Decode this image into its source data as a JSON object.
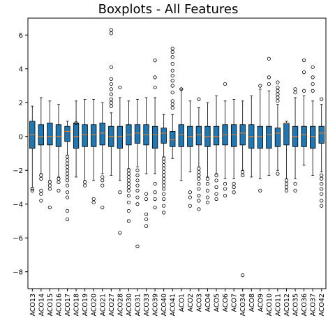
{
  "chart_data": {
    "type": "boxplot",
    "title": "Boxplots - All Features",
    "xlabel": "",
    "ylabel": "",
    "ylim": [
      -9,
      7
    ],
    "yticks": [
      -8,
      -6,
      -4,
      -2,
      0,
      2,
      4,
      6
    ],
    "grid": false,
    "colors": {
      "box": "#1f77b4",
      "median": "#ff7f0e",
      "frame": "#000000",
      "outlier": "#000000"
    },
    "categories": [
      "ACO13",
      "ACO14",
      "ACO15",
      "ACO16",
      "ACO17",
      "ACO18",
      "ACO19",
      "ACO20",
      "ACO21",
      "ACO27",
      "ACO28",
      "ACO30",
      "ACO31",
      "ACO33",
      "ACO39",
      "ACO40",
      "ACO41",
      "ACO1",
      "ACO2",
      "ACO3",
      "ACO4",
      "ACO5",
      "ACO6",
      "ACO7",
      "ACO34",
      "ACO8",
      "ACO9",
      "ACO10",
      "ACO11",
      "ACO12",
      "ACO35",
      "ACO36",
      "ACO37",
      "ACO42"
    ],
    "boxes": [
      {
        "q1": -0.7,
        "median": 0.1,
        "q3": 0.9,
        "whisker_low": -3.0,
        "whisker_high": 1.8,
        "outliers": [
          -3.1,
          -3.2
        ]
      },
      {
        "q1": -0.5,
        "median": 0.0,
        "q3": 0.7,
        "whisker_low": -2.2,
        "whisker_high": 2.3,
        "outliers": [
          -2.3,
          -2.5,
          -3.2,
          -3.4,
          -3.8
        ]
      },
      {
        "q1": -0.5,
        "median": 0.0,
        "q3": 0.8,
        "whisker_low": -2.6,
        "whisker_high": 2.1,
        "outliers": [
          -2.7,
          -2.9,
          -3.1,
          -4.2
        ]
      },
      {
        "q1": -0.6,
        "median": 0.0,
        "q3": 0.7,
        "whisker_low": -2.4,
        "whisker_high": 1.9,
        "outliers": [
          -2.5,
          -2.7,
          -3.2
        ]
      },
      {
        "q1": -0.3,
        "median": 0.3,
        "q3": 0.6,
        "whisker_low": -1.1,
        "whisker_high": 0.9,
        "outliers": [
          -1.2,
          -1.4,
          -1.6,
          -1.8,
          -2.0,
          -2.2,
          -2.4,
          -2.6,
          -2.9,
          -3.3,
          -3.6,
          -4.4,
          -4.9
        ]
      },
      {
        "q1": -0.7,
        "median": 0.0,
        "q3": 0.8,
        "whisker_low": -2.4,
        "whisker_high": 2.1,
        "outliers": [
          0.8
        ]
      },
      {
        "q1": -0.6,
        "median": 0.1,
        "q3": 0.7,
        "whisker_low": -2.6,
        "whisker_high": 2.2,
        "outliers": [
          -2.7,
          -2.9
        ]
      },
      {
        "q1": -0.6,
        "median": 0.1,
        "q3": 0.7,
        "whisker_low": -2.6,
        "whisker_high": 2.2,
        "outliers": [
          -3.7,
          -3.9
        ]
      },
      {
        "q1": -0.5,
        "median": 0.2,
        "q3": 0.8,
        "whisker_low": -2.2,
        "whisker_high": 2.0,
        "outliers": [
          -2.4,
          -2.6,
          -2.9,
          -4.2
        ]
      },
      {
        "q1": -0.6,
        "median": 0.0,
        "q3": 0.6,
        "whisker_low": -2.3,
        "whisker_high": 1.4,
        "outliers": [
          1.8,
          2.0,
          2.2,
          2.5,
          2.8,
          3.1,
          3.4,
          4.1,
          6.1,
          6.3
        ]
      },
      {
        "q1": -0.7,
        "median": 0.0,
        "q3": 0.6,
        "whisker_low": -2.6,
        "whisker_high": 2.3,
        "outliers": [
          2.9,
          -3.3,
          -5.7
        ]
      },
      {
        "q1": -0.5,
        "median": 0.1,
        "q3": 0.7,
        "whisker_low": -1.9,
        "whisker_high": 2.1,
        "outliers": [
          -2.0,
          -2.2,
          -2.4,
          -2.6,
          -2.8,
          -3.0,
          -3.2,
          -3.5,
          -3.9,
          -4.4,
          -5.0
        ]
      },
      {
        "q1": -0.4,
        "median": 0.2,
        "q3": 0.7,
        "whisker_low": -1.8,
        "whisker_high": 2.2,
        "outliers": [
          -2.0,
          -2.3,
          -2.6,
          -2.9,
          -3.2,
          -3.6,
          -4.0,
          -6.5
        ]
      },
      {
        "q1": -0.5,
        "median": 0.1,
        "q3": 0.7,
        "whisker_low": -2.2,
        "whisker_high": 2.3,
        "outliers": [
          -3.4,
          -3.7,
          -4.6,
          -4.9,
          -5.3
        ]
      },
      {
        "q1": -0.7,
        "median": 0.1,
        "q3": 0.6,
        "whisker_low": -2.2,
        "whisker_high": 2.3,
        "outliers": [
          2.9,
          3.5,
          4.5,
          -2.8,
          -3.3,
          -3.7,
          -4.2
        ]
      },
      {
        "q1": -0.4,
        "median": 0.2,
        "q3": 0.5,
        "whisker_low": -1.2,
        "whisker_high": 1.3,
        "outliers": [
          -1.3,
          -1.5,
          -1.7,
          -1.9,
          -2.1,
          -2.3,
          -2.5,
          -2.7,
          -2.9,
          -3.1,
          -3.4,
          -3.7,
          -4.1,
          -4.5
        ]
      },
      {
        "q1": -0.6,
        "median": -0.2,
        "q3": 0.3,
        "whisker_low": -1.3,
        "whisker_high": 1.3,
        "outliers": [
          1.7,
          1.9,
          2.1,
          2.6,
          3.0,
          3.3,
          3.6,
          3.9,
          4.3,
          4.7,
          5.0,
          5.2
        ]
      },
      {
        "q1": -0.6,
        "median": 0.1,
        "q3": 0.7,
        "whisker_low": -2.6,
        "whisker_high": 2.8,
        "outliers": [
          2.8
        ]
      },
      {
        "q1": -0.6,
        "median": 0.0,
        "q3": 0.6,
        "whisker_low": -2.1,
        "whisker_high": 2.1,
        "outliers": [
          -3.3,
          -3.6,
          -4.1
        ]
      },
      {
        "q1": -0.5,
        "median": 0.1,
        "q3": 0.6,
        "whisker_low": -1.8,
        "whisker_high": 1.7,
        "outliers": [
          2.2,
          -1.9,
          -2.1,
          -2.3,
          -2.5,
          -2.8,
          -3.1,
          -3.5,
          -3.8,
          -4.3
        ]
      },
      {
        "q1": -0.6,
        "median": 0.0,
        "q3": 0.6,
        "whisker_low": -2.4,
        "whisker_high": 2.0,
        "outliers": [
          -2.5,
          -2.8,
          -3.2,
          -3.6,
          -3.9
        ]
      },
      {
        "q1": -0.5,
        "median": 0.0,
        "q3": 0.6,
        "whisker_low": -2.2,
        "whisker_high": 2.4,
        "outliers": [
          -2.3,
          -2.6,
          -3.0,
          -3.4,
          -3.7
        ]
      },
      {
        "q1": -0.5,
        "median": 0.1,
        "q3": 0.7,
        "whisker_low": -2.5,
        "whisker_high": 2.1,
        "outliers": [
          3.1,
          -2.8,
          -3.1,
          -3.5
        ]
      },
      {
        "q1": -0.6,
        "median": 0.1,
        "q3": 0.7,
        "whisker_low": -2.5,
        "whisker_high": 2.2,
        "outliers": [
          -2.8,
          -3.0,
          -3.3
        ]
      },
      {
        "q1": -0.5,
        "median": 0.2,
        "q3": 0.7,
        "whisker_low": -2.0,
        "whisker_high": 2.1,
        "outliers": [
          -2.1,
          -2.3,
          -8.2
        ]
      },
      {
        "q1": -0.7,
        "median": 0.0,
        "q3": 0.7,
        "whisker_low": -2.4,
        "whisker_high": 2.4,
        "outliers": []
      },
      {
        "q1": -0.7,
        "median": 0.0,
        "q3": 0.6,
        "whisker_low": -2.5,
        "whisker_high": 2.8,
        "outliers": [
          3.0,
          -3.2
        ]
      },
      {
        "q1": -0.7,
        "median": 0.1,
        "q3": 0.6,
        "whisker_low": -2.3,
        "whisker_high": 2.7,
        "outliers": [
          3.1,
          3.5,
          4.6
        ]
      },
      {
        "q1": -0.6,
        "median": 0.2,
        "q3": 0.5,
        "whisker_low": -2.0,
        "whisker_high": 1.9,
        "outliers": [
          2.1,
          2.3,
          2.5,
          2.7,
          2.9,
          3.2,
          -2.2
        ]
      },
      {
        "q1": -0.5,
        "median": 0.8,
        "q3": 0.8,
        "whisker_low": -2.5,
        "whisker_high": 0.9,
        "outliers": [
          -2.6,
          -2.8,
          -3.0,
          -3.2
        ]
      },
      {
        "q1": -0.6,
        "median": 0.0,
        "q3": 0.6,
        "whisker_low": -2.5,
        "whisker_high": 2.3,
        "outliers": [
          2.6,
          2.8,
          -2.8,
          -3.2
        ]
      },
      {
        "q1": -0.6,
        "median": 0.1,
        "q3": 0.6,
        "whisker_low": -1.7,
        "whisker_high": 2.4,
        "outliers": [
          2.7,
          3.8,
          4.5
        ]
      },
      {
        "q1": -0.7,
        "median": 0.0,
        "q3": 0.6,
        "whisker_low": -2.3,
        "whisker_high": 2.1,
        "outliers": [
          2.7,
          3.1,
          3.5,
          4.1
        ]
      },
      {
        "q1": -0.4,
        "median": 0.2,
        "q3": 0.6,
        "whisker_low": -2.1,
        "whisker_high": 1.9,
        "outliers": [
          2.2,
          -2.3,
          -2.5,
          -2.8,
          -3.1,
          -3.4,
          -3.8,
          -4.1
        ]
      }
    ]
  }
}
